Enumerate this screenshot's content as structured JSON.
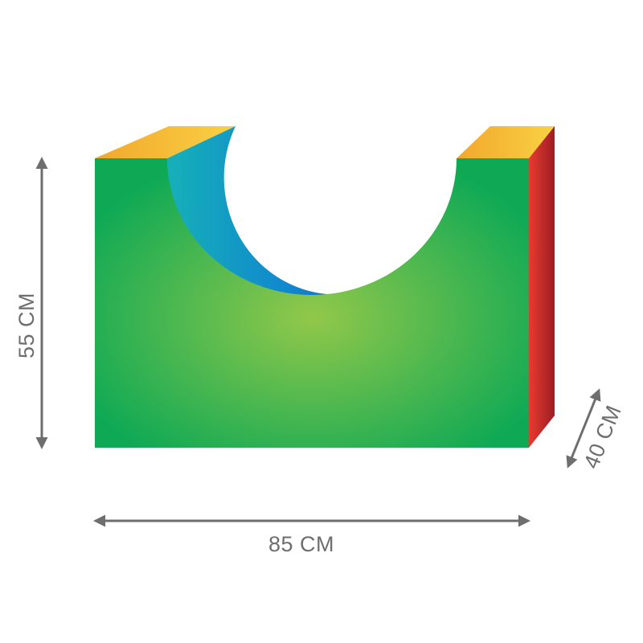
{
  "dimensions": {
    "height": "55 CM",
    "width": "85 CM",
    "depth": "40 CM"
  },
  "colors": {
    "front_face_center": "#92c84a",
    "front_face_edge": "#0fa955",
    "top_face_light": "#f9d143",
    "top_face_dark": "#f2a72d",
    "side_face_light": "#e63c2f",
    "side_face_dark": "#9e1c24",
    "cutout_teal": "#16b0b8",
    "cutout_blue": "#1087cf",
    "cutout_navy": "#1448a2",
    "dimension_line": "#6e6e6e"
  }
}
